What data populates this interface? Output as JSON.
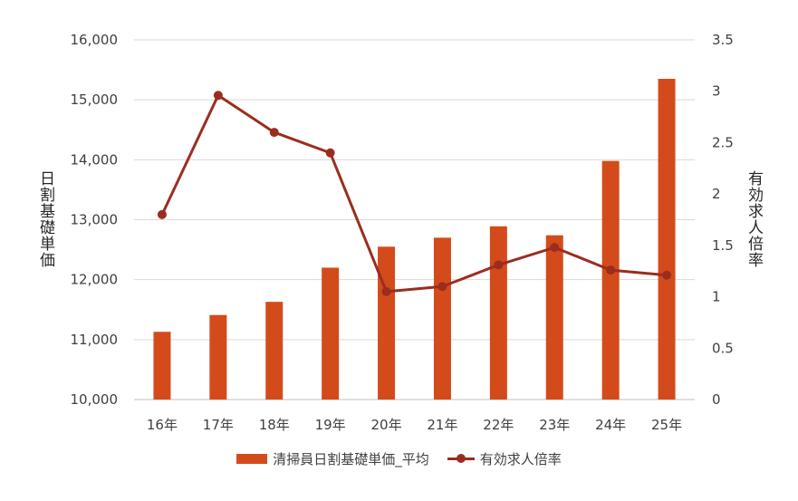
{
  "chart_data": {
    "type": "bar",
    "categories": [
      "16年",
      "17年",
      "18年",
      "19年",
      "20年",
      "21年",
      "22年",
      "23年",
      "24年",
      "25年"
    ],
    "series": [
      {
        "name": "清掃員日割基礎単価_平均",
        "type": "bar",
        "axis": "left",
        "color": "#d44b1b",
        "values": [
          11130,
          11410,
          11630,
          12200,
          12550,
          12700,
          12890,
          12740,
          13980,
          15350
        ]
      },
      {
        "name": "有効求人倍率",
        "type": "line",
        "axis": "right",
        "color": "#9b2d20",
        "values": [
          1.8,
          2.96,
          2.6,
          2.4,
          1.05,
          1.1,
          1.31,
          1.48,
          1.26,
          1.21
        ]
      }
    ],
    "ylabel": "日割基礎単価",
    "y2label": "有効求人倍率",
    "ylim": [
      10000,
      16000
    ],
    "y2lim": [
      0,
      3.5
    ],
    "yticks": [
      "10,000",
      "11,000",
      "12,000",
      "13,000",
      "14,000",
      "15,000",
      "16,000"
    ],
    "y2ticks": [
      "0",
      "0.5",
      "1",
      "1.5",
      "2",
      "2.5",
      "3",
      "3.5"
    ],
    "grid": true,
    "legend_position": "bottom"
  }
}
